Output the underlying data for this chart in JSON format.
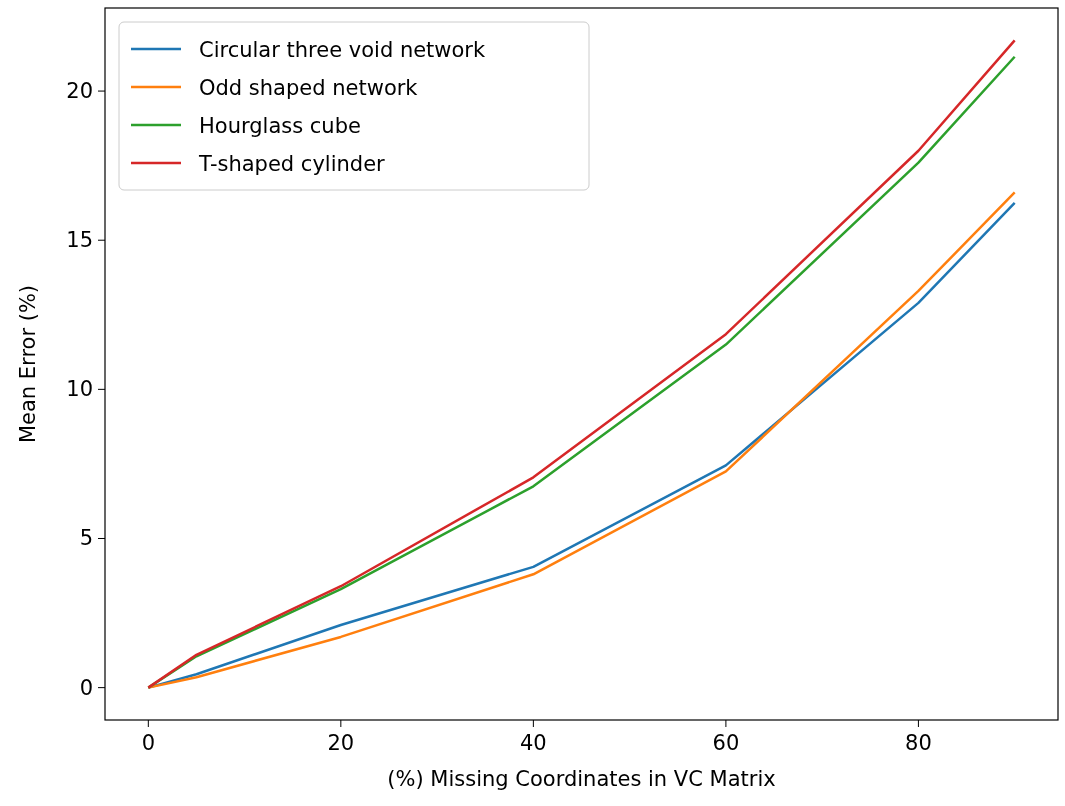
{
  "chart_data": {
    "type": "line",
    "xlabel": "(%) Missing Coordinates in VC Matrix",
    "ylabel": "Mean Error (%)",
    "x": [
      0,
      5,
      20,
      40,
      60,
      80,
      90
    ],
    "series": [
      {
        "name": "Circular three void network",
        "color": "#1f77b4",
        "values": [
          0,
          0.45,
          2.1,
          4.05,
          7.45,
          12.9,
          16.25
        ]
      },
      {
        "name": "Odd shaped network",
        "color": "#ff7f0e",
        "values": [
          0,
          0.35,
          1.7,
          3.8,
          7.25,
          13.3,
          16.6
        ]
      },
      {
        "name": "Hourglass cube",
        "color": "#2ca02c",
        "values": [
          0,
          1.05,
          3.3,
          6.75,
          11.5,
          17.6,
          21.15
        ]
      },
      {
        "name": "T-shaped cylinder",
        "color": "#d62728",
        "values": [
          0,
          1.1,
          3.4,
          7.05,
          11.85,
          18.0,
          21.7
        ]
      }
    ],
    "xlim": [
      -4.5,
      94.5
    ],
    "ylim": [
      -1.085,
      22.785
    ],
    "xticks": [
      0,
      20,
      40,
      60,
      80
    ],
    "yticks": [
      0,
      5,
      10,
      15,
      20
    ],
    "legend": "top left",
    "grid": false,
    "marker": "none",
    "line_style": "solid"
  }
}
